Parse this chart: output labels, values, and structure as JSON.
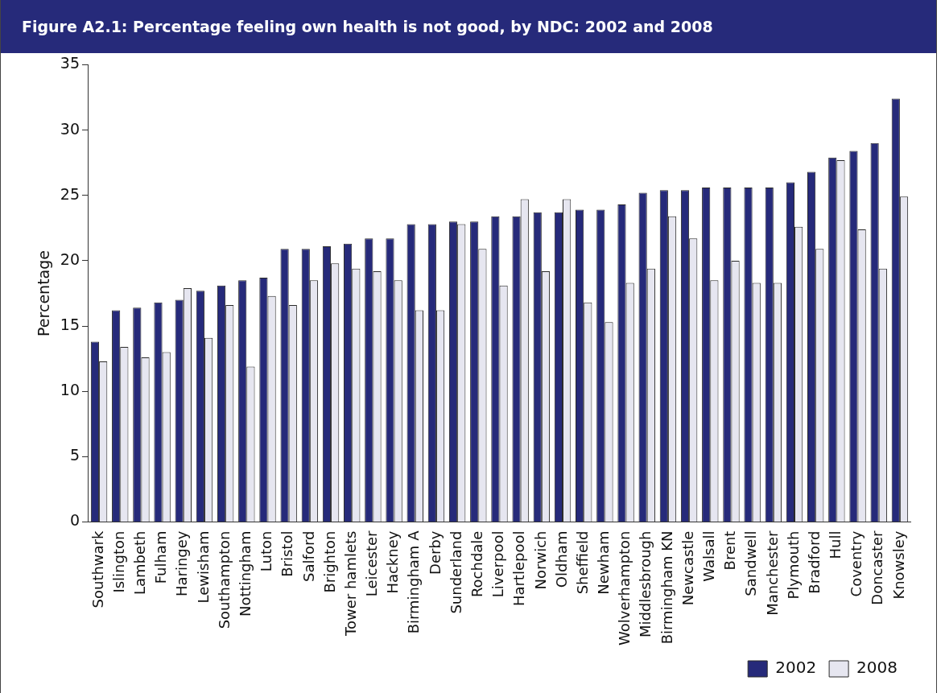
{
  "chart_data": {
    "type": "bar",
    "title": "Figure A2.1: Percentage feeling own health is not good, by NDC: 2002 and 2008",
    "ylabel": "Percentage",
    "categories": [
      "Southwark",
      "Islington",
      "Lambeth",
      "Fulham",
      "Haringey",
      "Lewisham",
      "Southampton",
      "Nottingham",
      "Luton",
      "Bristol",
      "Salford",
      "Brighton",
      "Tower hamlets",
      "Leicester",
      "Hackney",
      "Birmingham A",
      "Derby",
      "Sunderland",
      "Rochdale",
      "Liverpool",
      "Hartlepool",
      "Norwich",
      "Oldham",
      "Sheffield",
      "Newham",
      "Wolverhampton",
      "Middlesbrough",
      "Birmingham KN",
      "Newcastle",
      "Walsall",
      "Brent",
      "Sandwell",
      "Manchester",
      "Plymouth",
      "Bradford",
      "Hull",
      "Coventry",
      "Doncaster",
      "Knowsley"
    ],
    "series": [
      {
        "name": "2002",
        "color": "#262a7a",
        "values": [
          13.8,
          16.2,
          16.4,
          16.8,
          17.0,
          17.7,
          18.1,
          18.5,
          18.7,
          20.9,
          20.9,
          21.1,
          21.3,
          21.7,
          21.7,
          22.8,
          22.8,
          23.0,
          23.0,
          23.4,
          23.4,
          23.7,
          23.7,
          23.9,
          23.9,
          24.3,
          25.2,
          25.4,
          25.4,
          25.6,
          25.6,
          25.6,
          25.6,
          26.0,
          26.8,
          27.9,
          28.4,
          29.0,
          32.4
        ]
      },
      {
        "name": "2008",
        "color": "#e6e6f0",
        "values": [
          12.3,
          13.4,
          12.6,
          13.0,
          17.9,
          14.1,
          16.6,
          11.9,
          17.3,
          16.6,
          18.5,
          19.8,
          19.4,
          19.2,
          18.5,
          16.2,
          16.2,
          22.8,
          20.9,
          18.1,
          24.7,
          19.2,
          24.7,
          16.8,
          15.3,
          18.3,
          19.4,
          23.4,
          21.7,
          18.5,
          20.0,
          18.3,
          18.3,
          22.6,
          20.9,
          27.7,
          22.4,
          19.4,
          24.9
        ]
      }
    ],
    "ylim": [
      0,
      35
    ],
    "yticks": [
      0,
      5,
      10,
      15,
      20,
      25,
      30,
      35
    ],
    "grid": false,
    "legend": "bottom right"
  }
}
